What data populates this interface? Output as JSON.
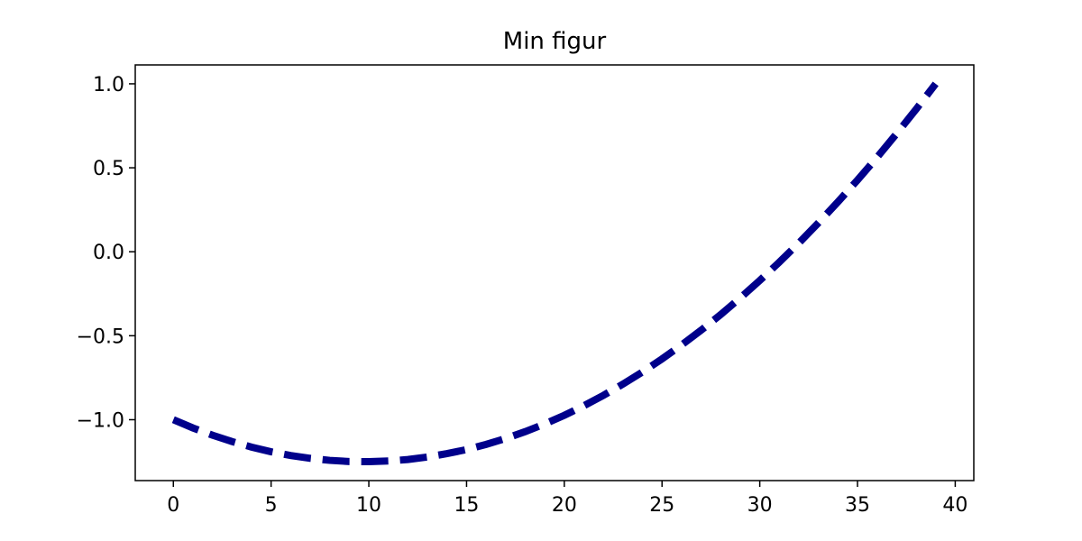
{
  "chart_data": {
    "type": "line",
    "title": "Min figur",
    "x": [
      0,
      1,
      2,
      3,
      4,
      5,
      6,
      7,
      8,
      9,
      10,
      11,
      12,
      13,
      14,
      15,
      16,
      17,
      18,
      19,
      20,
      21,
      22,
      23,
      24,
      25,
      26,
      27,
      28,
      29,
      30,
      31,
      32,
      33,
      34,
      35,
      36,
      37,
      38,
      39
    ],
    "series": [
      {
        "color": "#00008b",
        "values": [
          -1.0,
          -1.049,
          -1.092,
          -1.13,
          -1.163,
          -1.191,
          -1.213,
          -1.23,
          -1.242,
          -1.249,
          -1.25,
          -1.246,
          -1.237,
          -1.222,
          -1.202,
          -1.178,
          -1.147,
          -1.112,
          -1.071,
          -1.025,
          -0.974,
          -0.917,
          -0.855,
          -0.788,
          -0.716,
          -0.638,
          -0.555,
          -0.467,
          -0.374,
          -0.275,
          -0.171,
          -0.062,
          0.052,
          0.172,
          0.297,
          0.427,
          0.562,
          0.703,
          0.849,
          1.0
        ]
      }
    ],
    "xlim": [
      -1.95,
      40.95
    ],
    "xticks": [
      0,
      5,
      10,
      15,
      20,
      25,
      30,
      35,
      40
    ],
    "ylim": [
      -1.3625,
      1.1125
    ],
    "yticks": [
      {
        "value": -1,
        "label": "−1.0"
      },
      {
        "value": -0.5,
        "label": "−0.5"
      },
      {
        "value": 0,
        "label": "0.0"
      },
      0.5,
      {
        "value": 1,
        "label": "1.0"
      }
    ],
    "line_style": "dashed",
    "grid": false
  }
}
